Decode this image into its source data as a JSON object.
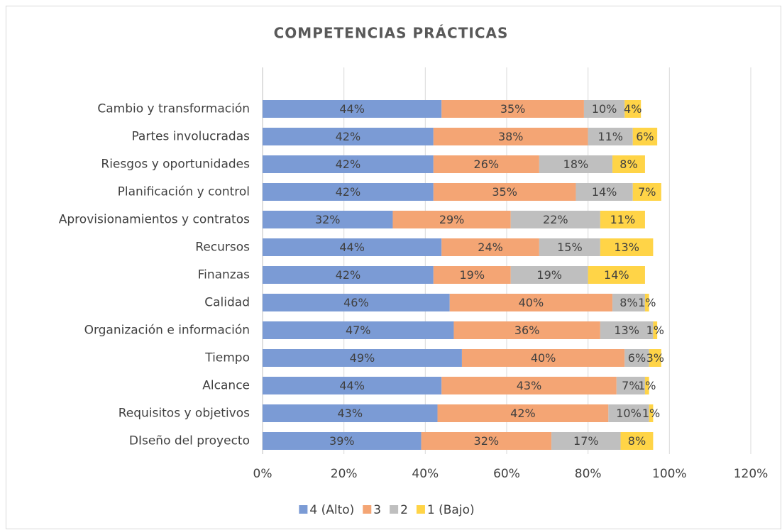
{
  "chart_data": {
    "type": "stacked-bar-horizontal",
    "title": "COMPETENCIAS PRÁCTICAS",
    "categories": [
      "Cambio y transformación",
      "Partes involucradas",
      "Riesgos y oportunidades",
      "Planificación y control",
      "Aprovisionamientos y contratos",
      "Recursos",
      "Finanzas",
      "Calidad",
      "Organización e información",
      "Tiempo",
      "Alcance",
      "Requisitos y objetivos",
      "DIseño del proyecto"
    ],
    "series": [
      {
        "name": "4 (Alto)",
        "color": "#7b9bd5",
        "values": [
          44,
          42,
          42,
          42,
          32,
          44,
          42,
          46,
          47,
          49,
          44,
          43,
          39
        ],
        "value_labels": [
          "44%",
          "42%",
          "42%",
          "42%",
          "32%",
          "44%",
          "42%",
          "46%",
          "47%",
          "49%",
          "44%",
          "43%",
          "39%"
        ]
      },
      {
        "name": "3",
        "color": "#f4a574",
        "values": [
          35,
          38,
          26,
          35,
          29,
          24,
          19,
          40,
          36,
          40,
          43,
          42,
          32
        ],
        "value_labels": [
          "35%",
          "38%",
          "26%",
          "35%",
          "29%",
          "24%",
          "19%",
          "40%",
          "36%",
          "40%",
          "43%",
          "42%",
          "32%"
        ]
      },
      {
        "name": "2",
        "color": "#bfbfbf",
        "values": [
          10,
          11,
          18,
          14,
          22,
          15,
          19,
          8,
          13,
          6,
          7,
          10,
          17
        ],
        "value_labels": [
          "10%",
          "11%",
          "18%",
          "14%",
          "22%",
          "15%",
          "19%",
          "8%",
          "13%",
          "6%",
          "7%",
          "10%",
          "17%"
        ]
      },
      {
        "name": "1 (Bajo)",
        "color": "#ffd447",
        "values": [
          4,
          6,
          8,
          7,
          11,
          13,
          14,
          1,
          1,
          3,
          1,
          1,
          8
        ],
        "value_labels": [
          "4%",
          "6%",
          "8%",
          "7%",
          "11%",
          "13%",
          "14%",
          "1%",
          "1%",
          "3%",
          "1%",
          "1%",
          "8%"
        ]
      }
    ],
    "xlim": [
      0,
      120
    ],
    "xticks": [
      {
        "value": 0,
        "label": "0%"
      },
      {
        "value": 20,
        "label": "20%"
      },
      {
        "value": 40,
        "label": "40%"
      },
      {
        "value": 60,
        "label": "60%"
      },
      {
        "value": 80,
        "label": "80%"
      },
      {
        "value": 100,
        "label": "100%"
      },
      {
        "value": 120,
        "label": "120%"
      }
    ],
    "grid": true,
    "legend": "bottom"
  }
}
